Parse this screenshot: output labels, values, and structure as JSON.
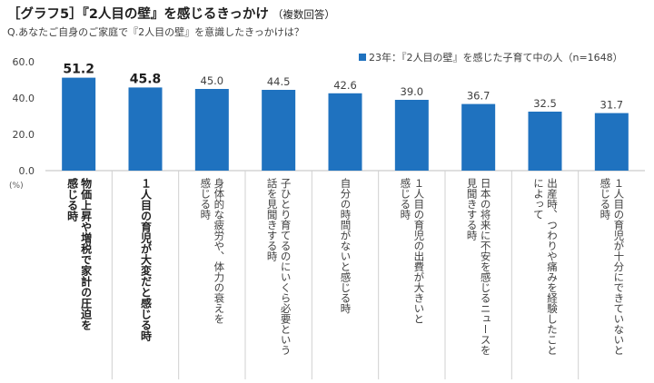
{
  "title": "［グラフ5］『2人目の壁』を感じるきっかけ",
  "title_note": "（複数回答）",
  "question": "Q.あなたご自身のご家庭で『2人目の壁』を意識したきっかけは？",
  "legend_label": "23年：『2人目の壁』を感じた子育て中の人（n=1648）",
  "accent_color": "#1f72bf",
  "unit_label": "(%)",
  "chart_data": {
    "type": "bar",
    "title": "［グラフ5］『2人目の壁』を感じるきっかけ",
    "xlabel": "",
    "ylabel": "(%)",
    "ylim": [
      0,
      60
    ],
    "yticks": [
      "0.0",
      "20.0",
      "40.0",
      "60.0"
    ],
    "ytick_values": [
      0,
      20,
      40,
      60
    ],
    "grid": false,
    "legend": "top-right",
    "series": [
      {
        "name": "23年：『2人目の壁』を感じた子育て中の人（n=1648）",
        "values": [
          51.2,
          45.8,
          45.0,
          44.5,
          42.6,
          39.0,
          36.7,
          32.5,
          31.7
        ]
      }
    ],
    "value_labels": [
      "51.2",
      "45.8",
      "45.0",
      "44.5",
      "42.6",
      "39.0",
      "36.7",
      "32.5",
      "31.7"
    ],
    "highlight": [
      true,
      true,
      false,
      false,
      false,
      false,
      false,
      false,
      false
    ],
    "categories": [
      "物価上昇や増税で家計の圧迫を\n感じる時",
      "１人目の育児が大変だと感じる時",
      "身体的な疲労や、体力の衰えを\n感じる時",
      "子ひとり育てるのにいくら必要という\n話を見聞きする時",
      "自分の時間がないと感じる時",
      "１人目の育児の出費が大きいと\n感じる時",
      "日本の将来に不安を感じるニュースを\n見聞きする時",
      "出産時、つわりや痛みを経験したこと\nによって",
      "１人目の育児が十分にできていないと\n感じる時"
    ]
  }
}
